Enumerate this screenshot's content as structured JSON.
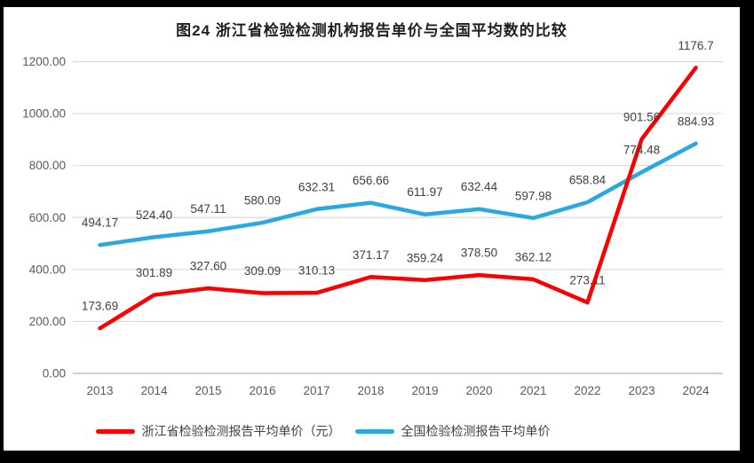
{
  "chart_data": {
    "type": "line",
    "title": "图24  浙江省检验检测机构报告单价与全国平均数的比较",
    "categories": [
      "2013",
      "2014",
      "2015",
      "2016",
      "2017",
      "2018",
      "2019",
      "2020",
      "2021",
      "2022",
      "2023",
      "2024"
    ],
    "series": [
      {
        "name": "浙江省检验检测报告平均单价（元）",
        "color": "#fb0000",
        "values": [
          173.69,
          301.89,
          327.6,
          309.09,
          310.13,
          371.17,
          359.24,
          378.5,
          362.12,
          273.11,
          901.56,
          1176.7
        ],
        "labels": [
          "173.69",
          "301.89",
          "327.60",
          "309.09",
          "310.13",
          "371.17",
          "359.24",
          "378.50",
          "362.12",
          "273.11",
          "901.56",
          "1176.7"
        ]
      },
      {
        "name": "全国检验检测报告平均单价",
        "color": "#2ba8df",
        "values": [
          494.17,
          524.4,
          547.11,
          580.09,
          632.31,
          656.66,
          611.97,
          632.44,
          597.98,
          658.84,
          774.48,
          884.93
        ],
        "labels": [
          "494.17",
          "524.40",
          "547.11",
          "580.09",
          "632.31",
          "656.66",
          "611.97",
          "632.44",
          "597.98",
          "658.84",
          "774.48",
          "884.93"
        ]
      }
    ],
    "y_axis": {
      "min": 0,
      "max": 1200,
      "ticks": [
        "0.00",
        "200.00",
        "400.00",
        "600.00",
        "800.00",
        "1000.00",
        "1200.00"
      ]
    },
    "xlabel": "",
    "ylabel": "",
    "grid": true,
    "legend_position": "bottom",
    "colors": {
      "gridline": "#d9d9d9",
      "axis_line": "#bfbfbf",
      "axis_text": "#595959",
      "data_label_text": "#404040",
      "frame_border": "#000000",
      "background": "#ffffff"
    }
  }
}
